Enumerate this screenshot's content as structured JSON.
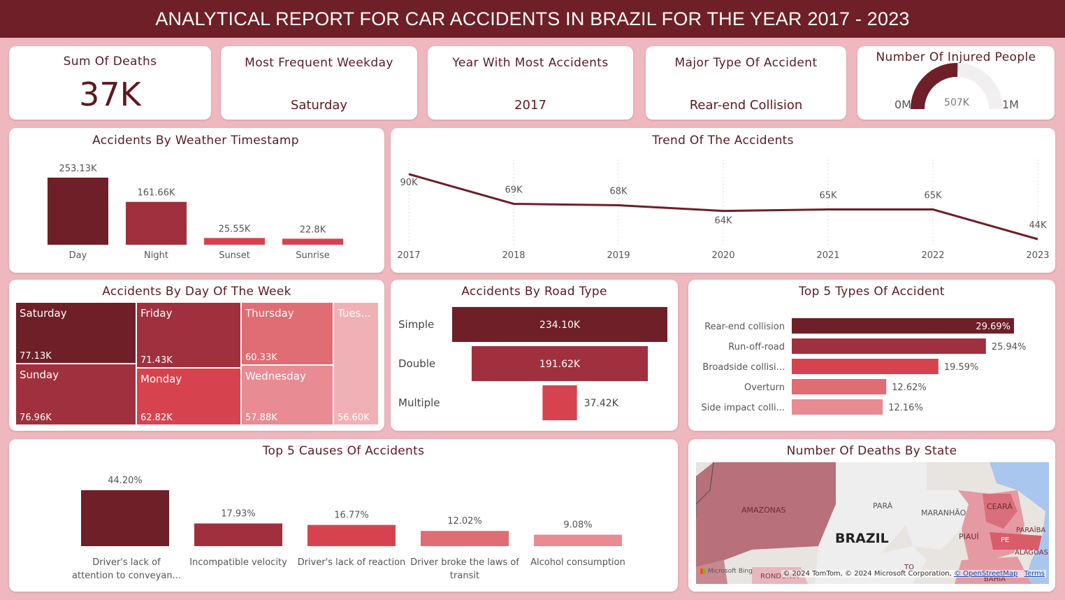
{
  "header": {
    "title": "ANALYTICAL REPORT FOR CAR ACCIDENTS IN BRAZIL FOR THE YEAR 2017 - 2023"
  },
  "kpis": {
    "deaths": {
      "label": "Sum Of Deaths",
      "value": "37K"
    },
    "weekday": {
      "label": "Most Frequent Weekday",
      "value": "Saturday"
    },
    "year": {
      "label": "Year With Most Accidents",
      "value": "2017"
    },
    "type": {
      "label": "Major Type Of Accident",
      "value": "Rear-end Collision"
    },
    "injured": {
      "label": "Number Of Injured People",
      "min": "0M",
      "value": "507K",
      "max": "1M",
      "fraction": 0.507
    }
  },
  "colors": {
    "c1": "#6e1f27",
    "c2": "#a0303d",
    "c3": "#d6434f",
    "c4": "#e06c74",
    "c5": "#e88b93",
    "c6": "#f0b1b6"
  },
  "weather": {
    "title": "Accidents By Weather Timestamp",
    "chart_data": {
      "type": "bar",
      "categories": [
        "Day",
        "Night",
        "Sunset",
        "Sunrise"
      ],
      "values": [
        253.13,
        161.66,
        25.55,
        22.8
      ],
      "labels": [
        "253.13K",
        "161.66K",
        "25.55K",
        "22.8K"
      ]
    }
  },
  "trend": {
    "title": "Trend Of The Accidents",
    "chart_data": {
      "type": "line",
      "x": [
        "2017",
        "2018",
        "2019",
        "2020",
        "2021",
        "2022",
        "2023"
      ],
      "values": [
        90,
        69,
        68,
        64,
        65,
        65,
        44
      ],
      "labels": [
        "90K",
        "69K",
        "68K",
        "64K",
        "65K",
        "65K",
        "44K"
      ]
    }
  },
  "weekday": {
    "title": "Accidents By Day Of The Week",
    "chart_data": {
      "type": "treemap",
      "items": [
        {
          "name": "Saturday",
          "label": "77.13K",
          "value": 77.13
        },
        {
          "name": "Sunday",
          "label": "76.96K",
          "value": 76.96
        },
        {
          "name": "Friday",
          "label": "71.43K",
          "value": 71.43
        },
        {
          "name": "Monday",
          "label": "62.82K",
          "value": 62.82
        },
        {
          "name": "Thursday",
          "label": "60.33K",
          "value": 60.33
        },
        {
          "name": "Wednesday",
          "label": "57.88K",
          "value": 57.88
        },
        {
          "name": "Tues...",
          "label": "56.60K",
          "value": 56.6
        }
      ]
    }
  },
  "road": {
    "title": "Accidents By Road Type",
    "chart_data": {
      "type": "bar",
      "categories": [
        "Simple",
        "Double",
        "Multiple"
      ],
      "values": [
        234.1,
        191.62,
        37.42
      ],
      "labels": [
        "234.10K",
        "191.62K",
        "37.42K"
      ]
    }
  },
  "types": {
    "title": "Top 5 Types Of Accident",
    "chart_data": {
      "type": "bar",
      "categories": [
        "Rear-end collision",
        "Run-off-road",
        "Broadside collisi...",
        "Overturn",
        "Side impact colli..."
      ],
      "values": [
        29.69,
        25.94,
        19.59,
        12.62,
        12.16
      ],
      "labels": [
        "29.69%",
        "25.94%",
        "19.59%",
        "12.62%",
        "12.16%"
      ]
    }
  },
  "causes": {
    "title": "Top 5 Causes Of Accidents",
    "chart_data": {
      "type": "bar",
      "categories": [
        [
          "Driver's lack of",
          "attention to conveyan..."
        ],
        [
          "Incompatible velocity"
        ],
        [
          "Driver's lack of reaction"
        ],
        [
          "Driver broke the laws of",
          "transit"
        ],
        [
          "Alcohol consumption"
        ]
      ],
      "values": [
        44.2,
        17.93,
        16.77,
        12.02,
        9.08
      ],
      "labels": [
        "44.20%",
        "17.93%",
        "16.77%",
        "12.02%",
        "9.08%"
      ]
    }
  },
  "map": {
    "title": "Number Of Deaths By State",
    "labels": {
      "para": "PARÁ",
      "amazonas": "AMAZONAS",
      "brazil": "BRAZIL",
      "maranhao": "MARANHÃO",
      "ceara": "CEARÁ",
      "piaui": "PIAUÍ",
      "paraiba": "PARAÍBA",
      "pe": "PE",
      "alagoas": "ALAGOAS",
      "to": "TO",
      "rondonia": "RONDÔNIA",
      "bahia": "BAHIA"
    },
    "bing": "Microsoft Bing",
    "attribution": "© 2024 TomTom, © 2024 Microsoft Corporation,",
    "osm": "© OpenStreetMap",
    "terms": "Terms"
  }
}
